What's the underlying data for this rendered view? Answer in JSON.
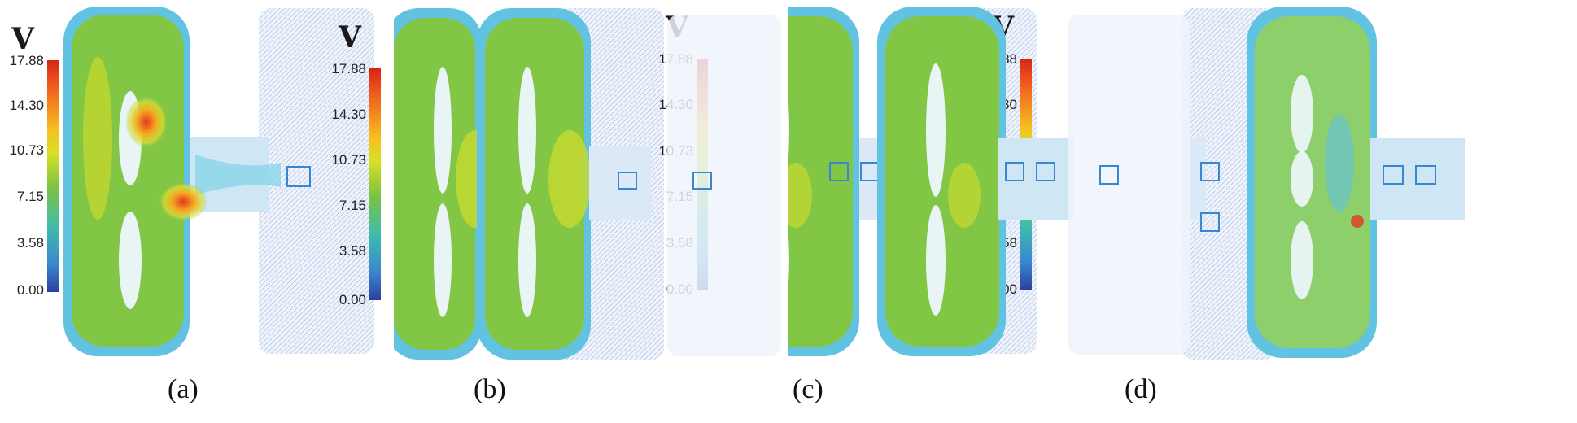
{
  "variable_symbol": "V",
  "colorbar_ticks": [
    "17.88",
    "14.30",
    "10.73",
    "7.15",
    "3.58",
    "0.00"
  ],
  "panels": [
    {
      "caption": "(a)"
    },
    {
      "caption": "(b)"
    },
    {
      "caption": "(c)"
    },
    {
      "caption": "(d)"
    }
  ],
  "colors": {
    "max": "#d62418",
    "high": "#f6c020",
    "mid": "#7cc243",
    "low": "#3fbcab",
    "min": "#2c3fa0"
  }
}
